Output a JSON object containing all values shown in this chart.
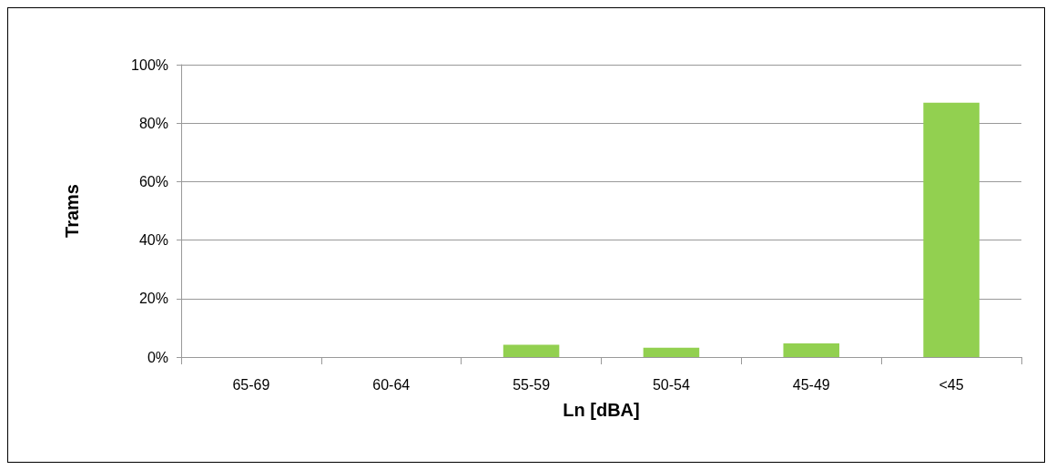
{
  "chart_data": {
    "type": "bar",
    "xlabel": "Ln [dBA]",
    "ylabel": "Trams",
    "categories": [
      "65-69",
      "60-64",
      "55-59",
      "50-54",
      "45-49",
      "<45"
    ],
    "values": [
      0,
      0,
      4.2,
      3.2,
      4.7,
      87.0
    ],
    "color": "#92d050",
    "ylim": [
      0,
      100
    ],
    "yticks": [
      {
        "value": 0,
        "label": "0%"
      },
      {
        "value": 20,
        "label": "20%"
      },
      {
        "value": 40,
        "label": "40%"
      },
      {
        "value": 60,
        "label": "60%"
      },
      {
        "value": 80,
        "label": "80%"
      },
      {
        "value": 100,
        "label": "100%"
      }
    ],
    "grid": "y"
  }
}
